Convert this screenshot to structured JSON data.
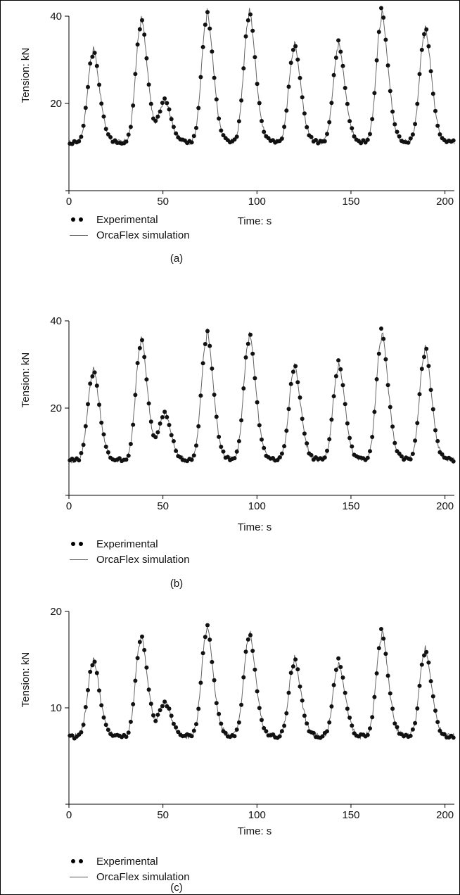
{
  "chart_data": [
    {
      "type": "line",
      "panel": "(a)",
      "xlabel": "Time: s",
      "ylabel": "Tension: kN",
      "xlim": [
        0,
        205
      ],
      "ylim": [
        0,
        40
      ],
      "xticks": [
        0,
        50,
        100,
        150,
        200
      ],
      "yticks": [
        20,
        40
      ],
      "baseline": 11,
      "peaks": [
        [
          12.5,
          31
        ],
        [
          38,
          37.5
        ],
        [
          50.5,
          20
        ],
        [
          73,
          38.5
        ],
        [
          95.5,
          39
        ],
        [
          119.5,
          32
        ],
        [
          143,
          32
        ],
        [
          166,
          38.5
        ],
        [
          189,
          35.5
        ]
      ],
      "series": [
        {
          "name": "Experimental",
          "style": "dots"
        },
        {
          "name": "OrcaFlex simulation",
          "style": "line"
        }
      ],
      "caption": "(a)"
    },
    {
      "type": "line",
      "panel": "(b)",
      "xlabel": "Time: s",
      "ylabel": "Tension: kN",
      "xlim": [
        0,
        205
      ],
      "ylim": [
        0,
        40
      ],
      "xticks": [
        0,
        50,
        100,
        150,
        200
      ],
      "yticks": [
        20,
        40
      ],
      "baseline": 8,
      "peaks": [
        [
          12.5,
          27.5
        ],
        [
          38,
          34
        ],
        [
          50.5,
          18
        ],
        [
          73,
          35.5
        ],
        [
          95.5,
          35
        ],
        [
          119.5,
          28
        ],
        [
          143,
          28.5
        ],
        [
          166,
          35
        ],
        [
          189,
          32
        ]
      ],
      "series": [
        {
          "name": "Experimental",
          "style": "dots"
        },
        {
          "name": "OrcaFlex simulation",
          "style": "line"
        }
      ],
      "caption": "(b)"
    },
    {
      "type": "line",
      "panel": "(c)",
      "xlabel": "Time: s",
      "ylabel": "Tension: kN",
      "xlim": [
        0,
        205
      ],
      "ylim": [
        0,
        20
      ],
      "xticks": [
        0,
        50,
        100,
        150,
        200
      ],
      "yticks": [
        10,
        20
      ],
      "baseline": 7,
      "peaks": [
        [
          12.5,
          14.5
        ],
        [
          38,
          16.8
        ],
        [
          50.5,
          10.3
        ],
        [
          73,
          17.5
        ],
        [
          95.5,
          17
        ],
        [
          119.5,
          14.5
        ],
        [
          143,
          14.2
        ],
        [
          166,
          17
        ],
        [
          189,
          15.5
        ]
      ],
      "series": [
        {
          "name": "Experimental",
          "style": "dots"
        },
        {
          "name": "OrcaFlex simulation",
          "style": "line"
        }
      ],
      "caption": "(c)"
    }
  ]
}
